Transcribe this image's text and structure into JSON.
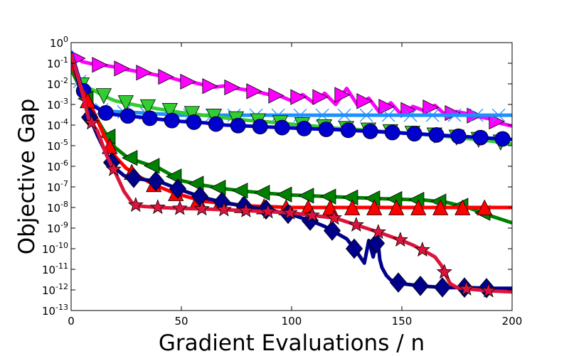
{
  "chart_data": {
    "type": "line",
    "title": "",
    "xlabel": "Gradient Evaluations / n",
    "ylabel": "Objective Gap",
    "xlim": [
      0,
      200
    ],
    "ylim_log10": [
      -13,
      0
    ],
    "yscale": "log",
    "x_ticks": [
      0,
      50,
      100,
      150,
      200
    ],
    "y_tick_base": "10",
    "y_tick_exponents": [
      "0",
      "-1",
      "-2",
      "-3",
      "-4",
      "-5",
      "-6",
      "-7",
      "-8",
      "-9",
      "-10",
      "-11",
      "-12",
      "-13"
    ],
    "grid": false,
    "legend": "none",
    "series": [
      {
        "color": "#ff00ff",
        "marker": "triangle-right",
        "marker_every": 10,
        "x": [
          0,
          5,
          10,
          15,
          20,
          25,
          30,
          35,
          40,
          45,
          50,
          55,
          60,
          65,
          70,
          75,
          80,
          85,
          90,
          95,
          100,
          105,
          110,
          115,
          120,
          125,
          130,
          135,
          140,
          145,
          150,
          155,
          160,
          165,
          170,
          175,
          180,
          185,
          190,
          195,
          200
        ],
        "y": [
          0.3,
          0.12,
          0.09,
          0.08,
          0.065,
          0.05,
          0.04,
          0.032,
          0.025,
          0.02,
          0.014,
          0.012,
          0.009,
          0.007,
          0.008,
          0.006,
          0.005,
          0.004,
          0.003,
          0.0025,
          0.0015,
          0.003,
          0.0012,
          0.0035,
          0.001,
          0.006,
          0.0009,
          0.002,
          0.0004,
          0.0012,
          0.0003,
          0.0008,
          0.0005,
          0.0009,
          0.0003,
          0.00045,
          0.00035,
          0.00025,
          0.0002,
          0.00012,
          9e-05
        ]
      },
      {
        "color": "#1e90ff",
        "marker": "x",
        "marker_every": 10,
        "x": [
          0,
          5,
          10,
          15,
          20,
          30,
          40,
          50,
          60,
          80,
          100,
          120,
          140,
          160,
          180,
          200
        ],
        "y": [
          0.4,
          0.005,
          0.0008,
          0.0005,
          0.00045,
          0.0004,
          0.00035,
          0.0003,
          0.0003,
          0.0003,
          0.0003,
          0.0003,
          0.0003,
          0.0003,
          0.0003,
          0.0003
        ]
      },
      {
        "color": "#32cd32",
        "marker": "triangle-down",
        "marker_every": 10,
        "x": [
          0,
          5,
          10,
          15,
          20,
          30,
          40,
          50,
          60,
          70,
          80,
          90,
          100,
          110,
          120,
          130,
          140,
          150,
          160,
          170,
          180,
          190,
          200
        ],
        "y": [
          0.05,
          0.008,
          0.005,
          0.0025,
          0.0015,
          0.0009,
          0.0006,
          0.0004,
          0.0003,
          0.00022,
          0.00017,
          0.00014,
          0.00011,
          9e-05,
          7e-05,
          6e-05,
          5e-05,
          4.2e-05,
          3.5e-05,
          2.8e-05,
          2.2e-05,
          1.7e-05,
          1.2e-05
        ]
      },
      {
        "color": "#0000cd",
        "marker": "circle",
        "marker_every": 10,
        "x": [
          0,
          5,
          10,
          15,
          20,
          30,
          40,
          50,
          60,
          70,
          80,
          90,
          100,
          110,
          120,
          130,
          140,
          150,
          160,
          170,
          180,
          190,
          200
        ],
        "y": [
          0.35,
          0.006,
          0.0009,
          0.0004,
          0.00032,
          0.00025,
          0.00019,
          0.00015,
          0.00013,
          0.0001,
          9e-05,
          8e-05,
          7.2e-05,
          6.5e-05,
          6e-05,
          5.3e-05,
          4.7e-05,
          4.1e-05,
          3.6e-05,
          3.1e-05,
          2.7e-05,
          2.3e-05,
          2e-05
        ]
      },
      {
        "color": "#008000",
        "marker": "triangle-left",
        "marker_every": 10,
        "x": [
          0,
          5,
          10,
          15,
          20,
          25,
          30,
          35,
          40,
          45,
          50,
          60,
          70,
          80,
          90,
          100,
          120,
          140,
          160,
          170,
          180,
          190,
          200
        ],
        "y": [
          0.05,
          0.004,
          0.0004,
          5e-05,
          8e-06,
          3e-06,
          1.8e-06,
          1.2e-06,
          8e-07,
          4e-07,
          2e-07,
          1.2e-07,
          8e-08,
          6e-08,
          4.8e-08,
          4e-08,
          3.3e-08,
          2.7e-08,
          2.3e-08,
          1.8e-08,
          1e-08,
          4e-09,
          1.8e-09
        ]
      },
      {
        "color": "#ff0000",
        "marker": "triangle-up",
        "marker_every": 10,
        "x": [
          0,
          5,
          10,
          15,
          20,
          25,
          30,
          35,
          40,
          45,
          50,
          60,
          80,
          100,
          120,
          140,
          160,
          180,
          200
        ],
        "y": [
          0.1,
          0.005,
          0.0005,
          3e-05,
          3e-06,
          8e-07,
          3.5e-07,
          1.8e-07,
          1e-07,
          6e-08,
          4e-08,
          2e-08,
          1.2e-08,
          1e-08,
          1e-08,
          1e-08,
          1e-08,
          1e-08,
          1e-08
        ]
      },
      {
        "color": "#00008b",
        "marker": "diamond",
        "marker_every": 10,
        "x": [
          0,
          4,
          8,
          12,
          16,
          20,
          24,
          30,
          40,
          50,
          60,
          70,
          80,
          90,
          100,
          110,
          115,
          120,
          125,
          130,
          133,
          135,
          137,
          139,
          140,
          141,
          143,
          145,
          150,
          160,
          165,
          170,
          180,
          190,
          200
        ],
        "y": [
          0.3,
          0.006,
          0.0003,
          3e-05,
          4e-06,
          8e-07,
          3.5e-07,
          2.5e-07,
          1.8e-07,
          7e-08,
          3e-08,
          1.7e-08,
          1.1e-08,
          7.5e-09,
          4.5e-09,
          2e-09,
          1.2e-09,
          6e-10,
          3e-10,
          6e-11,
          2e-11,
          2.5e-10,
          4e-11,
          3.5e-10,
          3e-11,
          1.2e-11,
          5e-12,
          3e-12,
          2e-12,
          1.5e-12,
          1.4e-12,
          1.3e-12,
          1.3e-12,
          1.2e-12,
          1.2e-12
        ]
      },
      {
        "color": "#dc143c",
        "marker": "star",
        "marker_every": 10,
        "x": [
          0,
          4,
          8,
          12,
          16,
          20,
          24,
          28,
          30,
          34,
          40,
          50,
          60,
          80,
          100,
          120,
          140,
          150,
          155,
          160,
          165,
          168,
          170,
          172,
          175,
          180,
          190,
          200
        ],
        "y": [
          0.3,
          0.01,
          0.0002,
          5e-05,
          3.5e-06,
          5e-07,
          6e-08,
          1.5e-08,
          1.2e-08,
          1.1e-08,
          1e-08,
          9e-09,
          8.5e-09,
          7e-09,
          5.5e-09,
          3e-09,
          6e-10,
          2.5e-10,
          1.5e-10,
          8e-11,
          4e-11,
          1.5e-11,
          5e-12,
          2e-12,
          1.3e-12,
          1.1e-12,
          9e-13,
          8e-13
        ]
      }
    ]
  }
}
